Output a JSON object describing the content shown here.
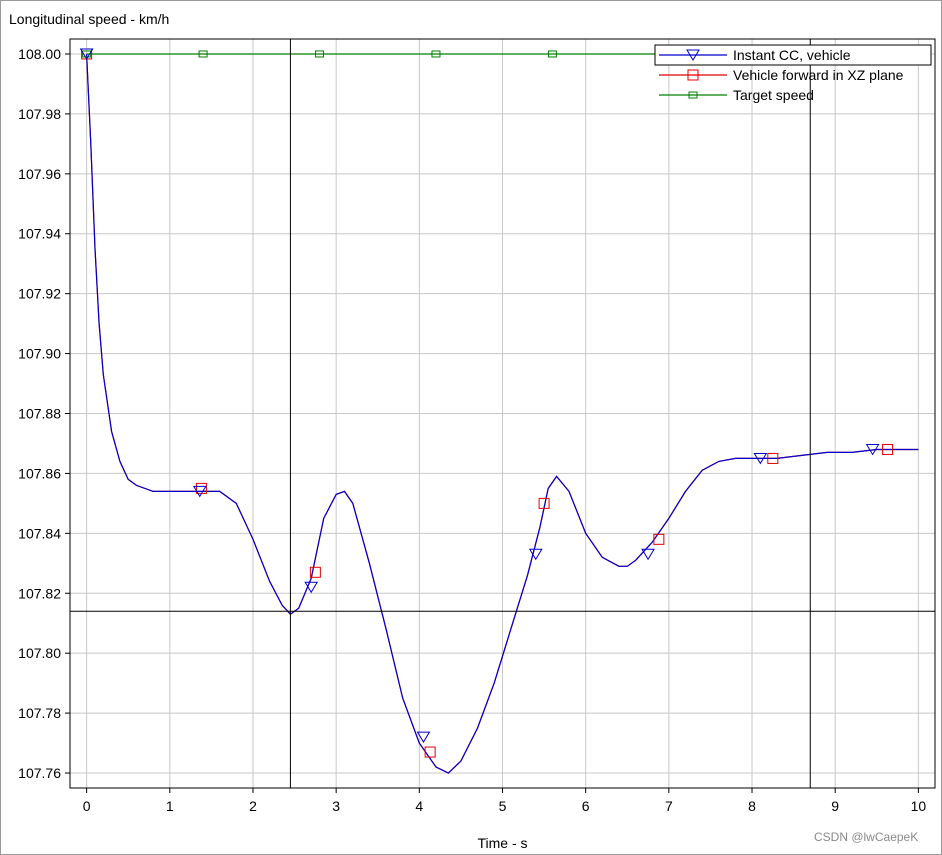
{
  "chart_data": {
    "type": "line",
    "title": "Longitudinal speed - km/h",
    "xlabel": "Time - s",
    "ylabel": "",
    "xlim": [
      -0.2,
      10.2
    ],
    "ylim": [
      107.755,
      108.005
    ],
    "x_ticks": [
      0,
      1,
      2,
      3,
      4,
      5,
      6,
      7,
      8,
      9,
      10
    ],
    "y_ticks": [
      107.76,
      107.78,
      107.8,
      107.82,
      107.84,
      107.86,
      107.88,
      107.9,
      107.92,
      107.94,
      107.96,
      107.98,
      108.0
    ],
    "grid": true,
    "legend_position": "top-right",
    "cursor": {
      "x": [
        2.45,
        8.7
      ],
      "y": 107.814
    },
    "series": [
      {
        "name": "Instant CC, vehicle",
        "color": "#0000cc",
        "marker": "triangle-down",
        "x": [
          0,
          0.05,
          0.1,
          0.15,
          0.2,
          0.3,
          0.4,
          0.5,
          0.6,
          0.8,
          1.0,
          1.2,
          1.4,
          1.6,
          1.8,
          2.0,
          2.2,
          2.35,
          2.45,
          2.55,
          2.7,
          2.85,
          3.0,
          3.1,
          3.2,
          3.4,
          3.6,
          3.8,
          4.0,
          4.2,
          4.35,
          4.5,
          4.7,
          4.9,
          5.1,
          5.3,
          5.45,
          5.55,
          5.65,
          5.8,
          6.0,
          6.2,
          6.4,
          6.5,
          6.6,
          6.8,
          7.0,
          7.2,
          7.4,
          7.6,
          7.8,
          8.0,
          8.3,
          8.6,
          8.9,
          9.2,
          9.5,
          10.0
        ],
        "y": [
          108.0,
          107.97,
          107.935,
          107.91,
          107.893,
          107.874,
          107.864,
          107.858,
          107.856,
          107.854,
          107.854,
          107.854,
          107.854,
          107.854,
          107.85,
          107.838,
          107.824,
          107.816,
          107.813,
          107.815,
          107.825,
          107.845,
          107.853,
          107.854,
          107.85,
          107.83,
          107.808,
          107.785,
          107.77,
          107.762,
          107.76,
          107.764,
          107.775,
          107.79,
          107.808,
          107.826,
          107.842,
          107.855,
          107.859,
          107.854,
          107.84,
          107.832,
          107.829,
          107.829,
          107.831,
          107.837,
          107.845,
          107.854,
          107.861,
          107.864,
          107.865,
          107.865,
          107.865,
          107.866,
          107.867,
          107.867,
          107.868,
          107.868
        ],
        "marker_x": [
          0,
          1.36,
          2.7,
          4.05,
          5.4,
          6.75,
          8.1,
          9.45
        ],
        "marker_y": [
          108.0,
          107.854,
          107.822,
          107.772,
          107.833,
          107.833,
          107.865,
          107.868
        ]
      },
      {
        "name": "Vehicle forward in XZ plane",
        "color": "#e00000",
        "marker": "square",
        "x": [
          0,
          0.05,
          0.1,
          0.15,
          0.2,
          0.3,
          0.4,
          0.5,
          0.6,
          0.8,
          1.0,
          1.2,
          1.4,
          1.6,
          1.8,
          2.0,
          2.2,
          2.35,
          2.45,
          2.55,
          2.7,
          2.85,
          3.0,
          3.1,
          3.2,
          3.4,
          3.6,
          3.8,
          4.0,
          4.2,
          4.35,
          4.5,
          4.7,
          4.9,
          5.1,
          5.3,
          5.45,
          5.55,
          5.65,
          5.8,
          6.0,
          6.2,
          6.4,
          6.5,
          6.6,
          6.8,
          7.0,
          7.2,
          7.4,
          7.6,
          7.8,
          8.0,
          8.3,
          8.6,
          8.9,
          9.2,
          9.5,
          10.0
        ],
        "y": [
          108.0,
          107.97,
          107.935,
          107.91,
          107.893,
          107.874,
          107.864,
          107.858,
          107.856,
          107.854,
          107.854,
          107.854,
          107.854,
          107.854,
          107.85,
          107.838,
          107.824,
          107.816,
          107.813,
          107.815,
          107.825,
          107.845,
          107.853,
          107.854,
          107.85,
          107.83,
          107.808,
          107.785,
          107.77,
          107.762,
          107.76,
          107.764,
          107.775,
          107.79,
          107.808,
          107.826,
          107.842,
          107.855,
          107.859,
          107.854,
          107.84,
          107.832,
          107.829,
          107.829,
          107.831,
          107.837,
          107.845,
          107.854,
          107.861,
          107.864,
          107.865,
          107.865,
          107.865,
          107.866,
          107.867,
          107.867,
          107.868,
          107.868
        ],
        "marker_x": [
          0,
          1.38,
          2.75,
          4.13,
          5.5,
          6.88,
          8.25,
          9.63
        ],
        "marker_y": [
          108.0,
          107.855,
          107.827,
          107.767,
          107.85,
          107.838,
          107.865,
          107.868
        ]
      },
      {
        "name": "Target speed",
        "color": "#008000",
        "marker": "square-small",
        "x": [
          0,
          10.0
        ],
        "y": [
          108.0,
          108.0
        ],
        "marker_x": [
          0,
          1.4,
          2.8,
          4.2,
          5.6
        ],
        "marker_y": [
          108.0,
          108.0,
          108.0,
          108.0,
          108.0
        ]
      }
    ]
  },
  "watermark": "CSDN @lwCaepeK"
}
